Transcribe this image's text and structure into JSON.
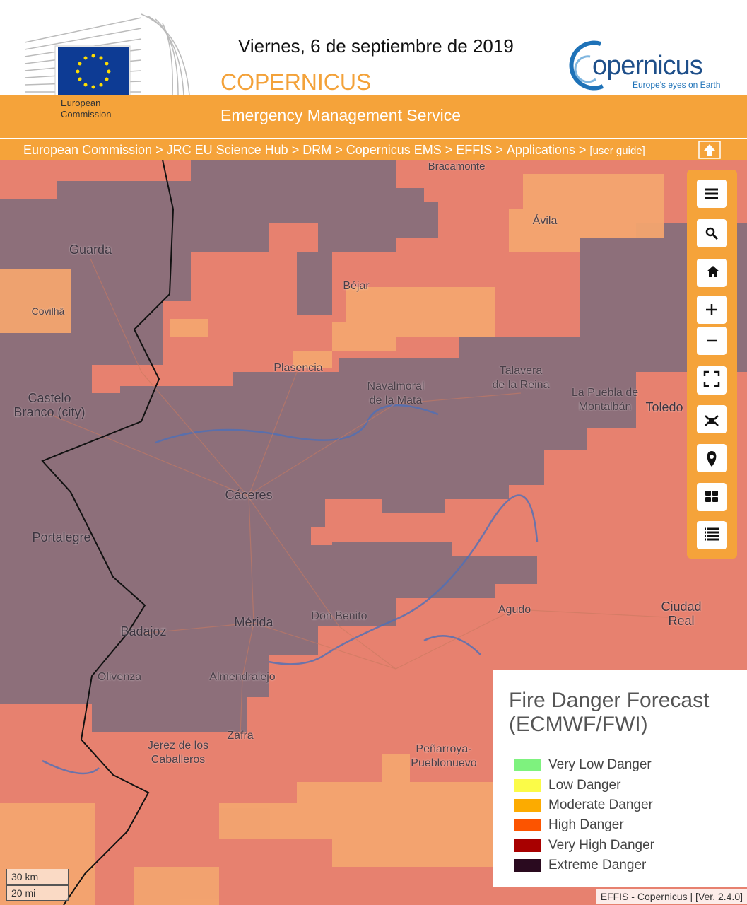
{
  "header": {
    "date": "Viernes, 6 de septiembre de 2019",
    "program": "COPERNICUS",
    "service": "Emergency Management Service",
    "ec_logo": "European\nCommission",
    "copernicus_logo": "opernicus",
    "copernicus_tagline": "Europe's eyes on Earth"
  },
  "breadcrumb": {
    "items": [
      "European Commission",
      "JRC EU Science Hub",
      "DRM",
      "Copernicus EMS",
      "EFFIS",
      "Applications"
    ],
    "separator": ">",
    "user_guide": "[user guide]"
  },
  "map": {
    "places": [
      "Bracamonte",
      "Ávila",
      "Guarda",
      "Béjar",
      "Covilhã",
      "Plasencia",
      "Talavera\nde la Reina",
      "Navalmoral\nde la Mata",
      "La Puebla de\nMontalbán",
      "Toledo",
      "Castelo\nBranco (city)",
      "Cáceres",
      "Portalegre",
      "Agudo",
      "Ciudad Real",
      "Don Benito",
      "Mérida",
      "Badajoz",
      "Olivenza",
      "Almendralejo",
      "Zafra",
      "Jerez de los\nCaballeros",
      "Peñarroya-\nPueblonuevo"
    ],
    "scale": [
      "30 km",
      "20 mi"
    ],
    "attribution": "EFFIS - Copernicus | [Ver. 2.4.0]"
  },
  "legend": {
    "title": "Fire Danger Forecast\n(ECMWF/FWI)",
    "items": [
      {
        "label": "Very Low Danger",
        "color": "#7ef27e"
      },
      {
        "label": "Low Danger",
        "color": "#fbfb48"
      },
      {
        "label": "Moderate Danger",
        "color": "#fcab00"
      },
      {
        "label": "High Danger",
        "color": "#fc5400"
      },
      {
        "label": "Very High Danger",
        "color": "#a80000"
      },
      {
        "label": "Extreme Danger",
        "color": "#2a0a1f"
      }
    ]
  }
}
